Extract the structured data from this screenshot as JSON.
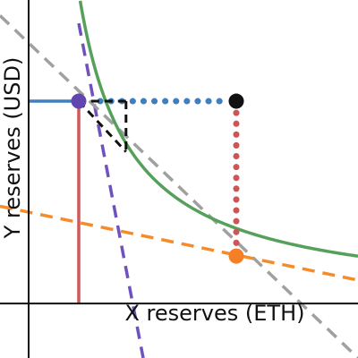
{
  "chart_data": {
    "type": "line",
    "title": "",
    "xlabel": "X reserves (ETH)",
    "ylabel": "Y reserves (USD)",
    "xlim": [
      -0.4,
      4.6
    ],
    "ylim": [
      -0.7,
      3.9
    ],
    "grid": false,
    "legend": "none",
    "curve": {
      "name": "",
      "k": 2.8,
      "x_start": 0.72,
      "x_end": 4.6,
      "color": "#55a05a"
    },
    "points": [
      {
        "name": "",
        "x": 0.7,
        "y": 2.6,
        "color": "#6246b0"
      },
      {
        "name": "",
        "x": 2.9,
        "y": 2.6,
        "color": "#111111"
      },
      {
        "name": "",
        "x": 2.9,
        "y": 0.61,
        "color": "#f47f24"
      }
    ],
    "dashed_lines": [
      {
        "name": "",
        "p1": [
          0.7,
          3.6
        ],
        "p2": [
          1.6,
          -0.7
        ],
        "color": "#6f52c0"
      },
      {
        "name": "",
        "p1": [
          -0.4,
          3.7
        ],
        "p2": [
          4.6,
          -0.7
        ],
        "color": "#a0a0a0"
      },
      {
        "name": "",
        "p1": [
          -0.4,
          1.25
        ],
        "p2": [
          4.6,
          0.3
        ],
        "color": "#f48c2c"
      }
    ],
    "dotted_lines": [
      {
        "name": "",
        "p1": [
          1.0,
          2.6
        ],
        "p2": [
          2.75,
          2.6
        ],
        "color": "#3f7fc0"
      },
      {
        "name": "",
        "p1": [
          2.9,
          2.45
        ],
        "p2": [
          2.9,
          0.75
        ],
        "color": "#cc5555"
      }
    ],
    "solid_segments": [
      {
        "name": "",
        "p1": [
          0.0,
          2.6
        ],
        "p2": [
          0.7,
          2.6
        ],
        "color": "#3f7fc0"
      },
      {
        "name": "",
        "p1": [
          0.7,
          2.6
        ],
        "p2": [
          0.7,
          0.0
        ],
        "color": "#d2575a"
      }
    ],
    "triangle": {
      "corner": [
        1.36,
        2.6
      ],
      "horizontal_to": [
        0.7,
        2.6
      ],
      "vertical_to": [
        1.36,
        1.95
      ],
      "hypotenuse": [
        [
          0.7,
          2.6
        ],
        [
          1.36,
          1.95
        ]
      ],
      "color": "#111111"
    }
  }
}
